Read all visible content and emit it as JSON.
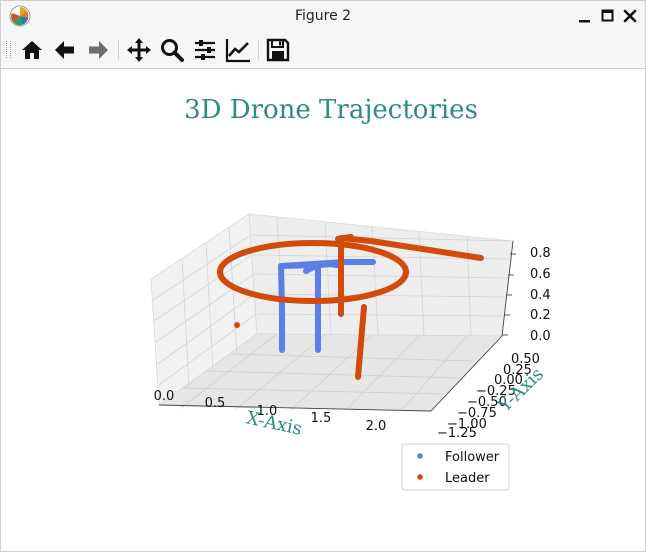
{
  "window": {
    "title": "Figure 2"
  },
  "toolbar": {
    "buttons": [
      "home-icon",
      "back-arrow-icon",
      "forward-arrow-icon",
      "pan-icon",
      "zoom-icon",
      "configure-subplots-icon",
      "edit-axis-icon",
      "save-icon"
    ]
  },
  "chart_data": {
    "type": "scatter",
    "projection": "3d",
    "title": "3D Drone Trajectories",
    "xlabel": "X-Axis",
    "ylabel": "Y-Axis",
    "zlabel": "",
    "xticks": [
      "0.0",
      "0.5",
      "1.0",
      "1.5",
      "2.0"
    ],
    "yticks": [
      "0.50",
      "0.25",
      "0.00",
      "−0.25",
      "−0.50",
      "−0.75",
      "−1.00",
      "−1.25"
    ],
    "zticks": [
      "0.0",
      "0.2",
      "0.4",
      "0.6",
      "0.8"
    ],
    "xlim": [
      0.0,
      2.3
    ],
    "ylim": [
      -1.25,
      0.6
    ],
    "zlim": [
      0.0,
      0.85
    ],
    "grid": true,
    "legend_position": "lower-right",
    "series": [
      {
        "name": "Follower",
        "color": "#5b7fe6",
        "note_shape": "two vertical posts joined by an upper crossbar, ending in a short arc"
      },
      {
        "name": "Leader",
        "color": "#d34a0b",
        "note_shape": "large ellipse loop with vertical post segments"
      }
    ]
  }
}
